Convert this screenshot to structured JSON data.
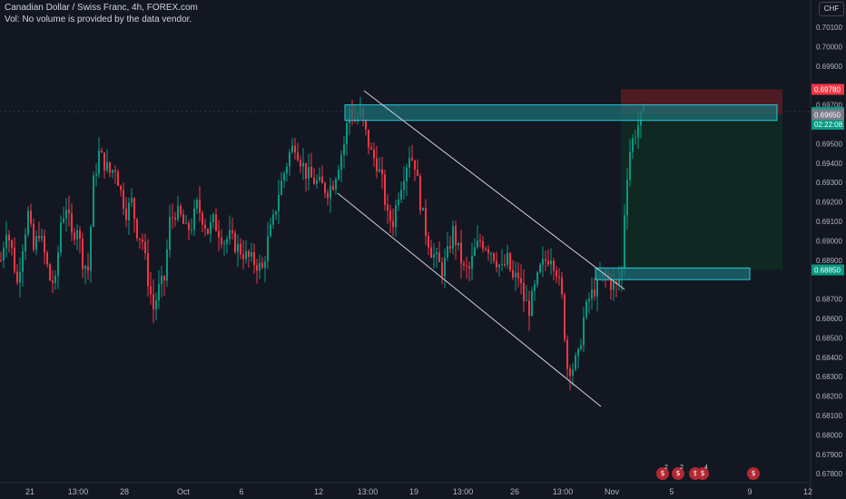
{
  "header": {
    "symbol_line": "Canadian Dollar / Swiss Franc, 4h, FOREX.com",
    "volume_note": "Vol: No volume is provided by the data vendor."
  },
  "currency_button": "CHF",
  "price_axis": {
    "ticks": [
      "0.70100",
      "0.70000",
      "0.69900",
      "0.69700",
      "0.69500",
      "0.69400",
      "0.69300",
      "0.69200",
      "0.69100",
      "0.69000",
      "0.68900",
      "0.68700",
      "0.68600",
      "0.68500",
      "0.68400",
      "0.68300",
      "0.68200",
      "0.68100",
      "0.68000",
      "0.67900",
      "0.67800"
    ],
    "labels": {
      "stop_loss": "0.69780",
      "current_price": "0.69661",
      "countdown": "02:22:08",
      "entry": "0.69650",
      "take_profit": "0.68850"
    },
    "colors": {
      "stop_loss": "#f23645",
      "current_price": "#089981",
      "entry": "#787b86",
      "take_profit": "#089981"
    }
  },
  "time_axis": {
    "labels": [
      "21",
      "13:00",
      "28",
      "Oct",
      "6",
      "12",
      "13:00",
      "19",
      "13:00",
      "26",
      "13:00",
      "Nov",
      "5",
      "9",
      "12"
    ]
  },
  "events": [
    {
      "icon": "economic-event-icon",
      "count": "2"
    },
    {
      "icon": "economic-event-icon",
      "count": "2"
    },
    {
      "icon": "economic-event-icon",
      "count": "4"
    },
    {
      "icon": "economic-event-icon",
      "count": ""
    }
  ],
  "colors": {
    "background": "#131722",
    "up_candle": "#089981",
    "down_candle": "#f23645",
    "zone_fill": "#1b6f73",
    "zone_border": "#26c6da",
    "channel_line": "#d1d4dc",
    "profit_fill": "#0f2a21",
    "risk_fill": "#5a1c22"
  },
  "chart_data": {
    "type": "candlestick",
    "symbol": "CADCHF",
    "interval": "4h",
    "ylim": [
      0.6775,
      0.7015
    ],
    "close_path": [
      {
        "t": 0,
        "p": 0.689
      },
      {
        "t": 6,
        "p": 0.6907
      },
      {
        "t": 12,
        "p": 0.6895
      },
      {
        "t": 18,
        "p": 0.6878
      },
      {
        "t": 24,
        "p": 0.6898
      },
      {
        "t": 30,
        "p": 0.6914
      },
      {
        "t": 36,
        "p": 0.6895
      },
      {
        "t": 42,
        "p": 0.6905
      },
      {
        "t": 48,
        "p": 0.6893
      },
      {
        "t": 54,
        "p": 0.688
      },
      {
        "t": 60,
        "p": 0.6878
      },
      {
        "t": 66,
        "p": 0.691
      },
      {
        "t": 72,
        "p": 0.6918
      },
      {
        "t": 78,
        "p": 0.6902
      },
      {
        "t": 84,
        "p": 0.6908
      },
      {
        "t": 90,
        "p": 0.689
      },
      {
        "t": 96,
        "p": 0.6885
      },
      {
        "t": 102,
        "p": 0.693
      },
      {
        "t": 108,
        "p": 0.6945
      },
      {
        "t": 114,
        "p": 0.694
      },
      {
        "t": 120,
        "p": 0.6935
      },
      {
        "t": 126,
        "p": 0.6938
      },
      {
        "t": 132,
        "p": 0.6925
      },
      {
        "t": 138,
        "p": 0.6915
      },
      {
        "t": 144,
        "p": 0.692
      },
      {
        "t": 150,
        "p": 0.6905
      },
      {
        "t": 156,
        "p": 0.69
      },
      {
        "t": 162,
        "p": 0.688
      },
      {
        "t": 168,
        "p": 0.6865
      },
      {
        "t": 174,
        "p": 0.6875
      },
      {
        "t": 180,
        "p": 0.688
      },
      {
        "t": 186,
        "p": 0.691
      },
      {
        "t": 192,
        "p": 0.6915
      },
      {
        "t": 198,
        "p": 0.6912
      },
      {
        "t": 204,
        "p": 0.6905
      },
      {
        "t": 210,
        "p": 0.6908
      },
      {
        "t": 216,
        "p": 0.6918
      },
      {
        "t": 222,
        "p": 0.6912
      },
      {
        "t": 228,
        "p": 0.6905
      },
      {
        "t": 234,
        "p": 0.691
      },
      {
        "t": 240,
        "p": 0.6905
      },
      {
        "t": 246,
        "p": 0.69
      },
      {
        "t": 252,
        "p": 0.6902
      },
      {
        "t": 258,
        "p": 0.6898
      },
      {
        "t": 264,
        "p": 0.6895
      },
      {
        "t": 270,
        "p": 0.6892
      },
      {
        "t": 276,
        "p": 0.689
      },
      {
        "t": 282,
        "p": 0.6888
      },
      {
        "t": 288,
        "p": 0.6885
      },
      {
        "t": 294,
        "p": 0.69
      },
      {
        "t": 300,
        "p": 0.691
      },
      {
        "t": 306,
        "p": 0.6925
      },
      {
        "t": 312,
        "p": 0.6935
      },
      {
        "t": 318,
        "p": 0.6945
      },
      {
        "t": 324,
        "p": 0.695
      },
      {
        "t": 330,
        "p": 0.6942
      },
      {
        "t": 336,
        "p": 0.6935
      },
      {
        "t": 342,
        "p": 0.6932
      },
      {
        "t": 348,
        "p": 0.693
      },
      {
        "t": 354,
        "p": 0.6928
      },
      {
        "t": 360,
        "p": 0.6926
      },
      {
        "t": 366,
        "p": 0.693
      },
      {
        "t": 372,
        "p": 0.694
      },
      {
        "t": 378,
        "p": 0.695
      },
      {
        "t": 384,
        "p": 0.6968
      },
      {
        "t": 390,
        "p": 0.6962
      },
      {
        "t": 396,
        "p": 0.6966
      },
      {
        "t": 402,
        "p": 0.6955
      },
      {
        "t": 408,
        "p": 0.6945
      },
      {
        "t": 414,
        "p": 0.694
      },
      {
        "t": 420,
        "p": 0.693
      },
      {
        "t": 426,
        "p": 0.6912
      },
      {
        "t": 432,
        "p": 0.691
      },
      {
        "t": 438,
        "p": 0.6925
      },
      {
        "t": 444,
        "p": 0.6935
      },
      {
        "t": 450,
        "p": 0.6945
      },
      {
        "t": 456,
        "p": 0.694
      },
      {
        "t": 462,
        "p": 0.692
      },
      {
        "t": 468,
        "p": 0.6905
      },
      {
        "t": 474,
        "p": 0.6895
      },
      {
        "t": 480,
        "p": 0.689
      },
      {
        "t": 486,
        "p": 0.6885
      },
      {
        "t": 492,
        "p": 0.6893
      },
      {
        "t": 498,
        "p": 0.6905
      },
      {
        "t": 504,
        "p": 0.6895
      },
      {
        "t": 510,
        "p": 0.6885
      },
      {
        "t": 516,
        "p": 0.6885
      },
      {
        "t": 522,
        "p": 0.6895
      },
      {
        "t": 528,
        "p": 0.69
      },
      {
        "t": 534,
        "p": 0.6898
      },
      {
        "t": 540,
        "p": 0.6895
      },
      {
        "t": 546,
        "p": 0.689
      },
      {
        "t": 552,
        "p": 0.6885
      },
      {
        "t": 558,
        "p": 0.689
      },
      {
        "t": 564,
        "p": 0.688
      },
      {
        "t": 570,
        "p": 0.6882
      },
      {
        "t": 576,
        "p": 0.687
      },
      {
        "t": 582,
        "p": 0.6865
      },
      {
        "t": 588,
        "p": 0.6875
      },
      {
        "t": 594,
        "p": 0.6885
      },
      {
        "t": 600,
        "p": 0.689
      },
      {
        "t": 606,
        "p": 0.6893
      },
      {
        "t": 612,
        "p": 0.6885
      },
      {
        "t": 618,
        "p": 0.687
      },
      {
        "t": 624,
        "p": 0.6835
      },
      {
        "t": 630,
        "p": 0.6835
      },
      {
        "t": 636,
        "p": 0.684
      },
      {
        "t": 642,
        "p": 0.686
      },
      {
        "t": 648,
        "p": 0.687
      },
      {
        "t": 654,
        "p": 0.6875
      },
      {
        "t": 660,
        "p": 0.688
      },
      {
        "t": 666,
        "p": 0.6882
      },
      {
        "t": 672,
        "p": 0.6878
      },
      {
        "t": 678,
        "p": 0.6876
      },
      {
        "t": 684,
        "p": 0.6885
      },
      {
        "t": 688,
        "p": 0.6925
      },
      {
        "t": 692,
        "p": 0.6945
      },
      {
        "t": 698,
        "p": 0.6955
      },
      {
        "t": 704,
        "p": 0.6962
      },
      {
        "t": 710,
        "p": 0.6966
      }
    ],
    "resistance_zone": {
      "price_high": 0.697,
      "price_low": 0.6962
    },
    "support_zone": {
      "price_high": 0.6886,
      "price_low": 0.688
    },
    "position": {
      "type": "short",
      "stop_loss": 0.6978,
      "entry": 0.6965,
      "take_profit": 0.6885
    },
    "channel": {
      "direction": "descending"
    }
  }
}
